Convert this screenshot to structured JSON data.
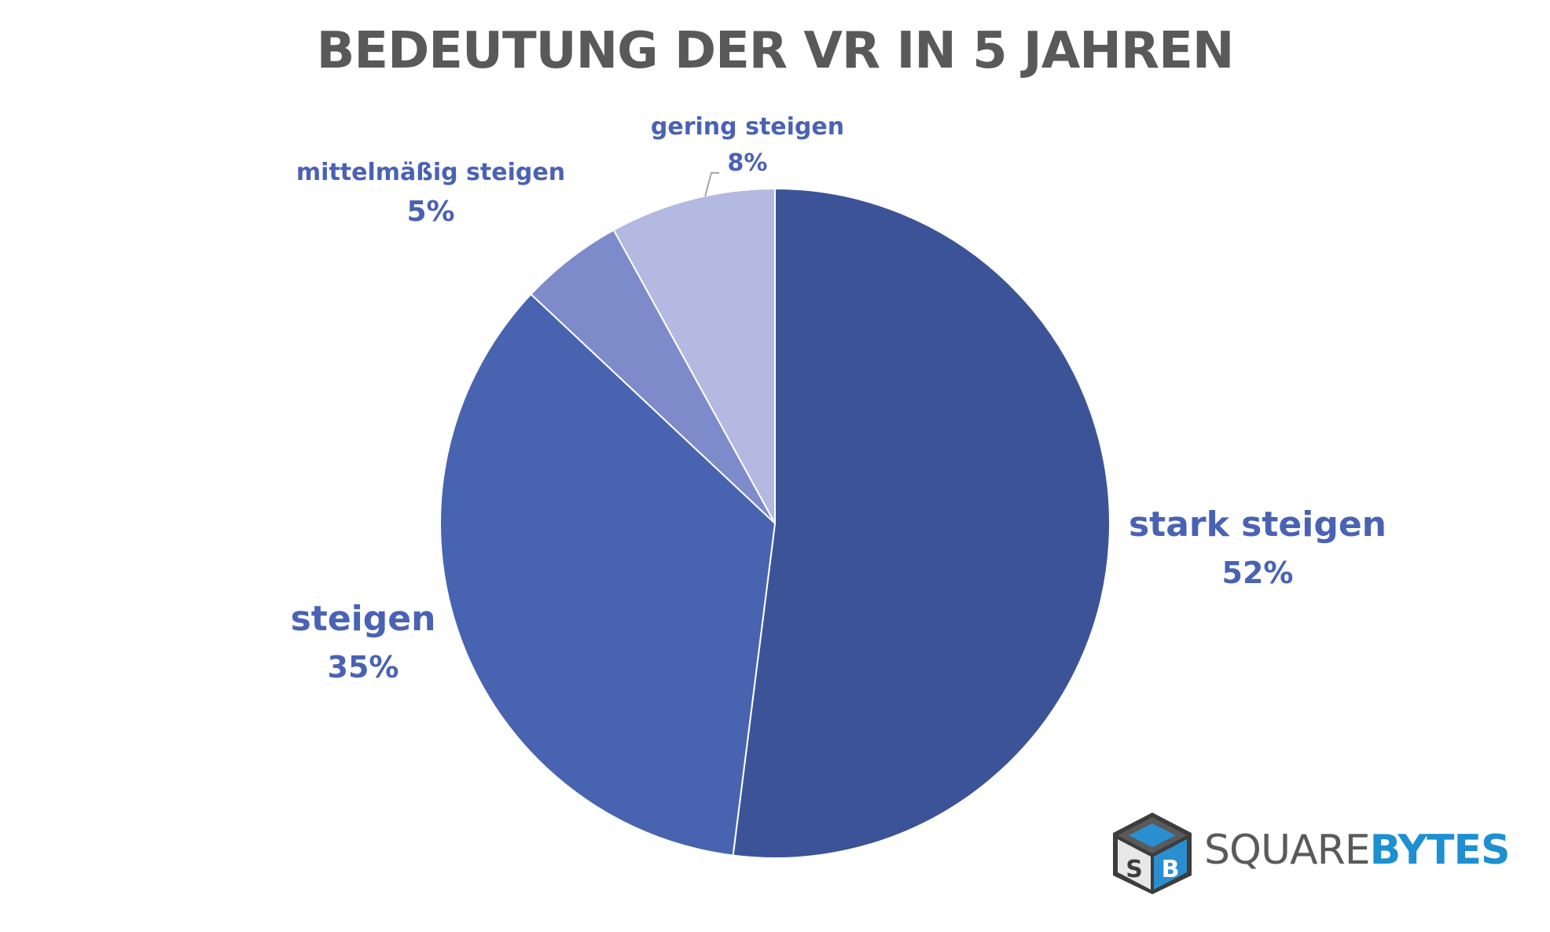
{
  "chart_data": {
    "type": "pie",
    "title": "BEDEUTUNG DER VR IN 5 JAHREN",
    "start_angle_deg": 0,
    "direction": "clockwise",
    "slices": [
      {
        "label": "stark steigen",
        "value": 52,
        "value_label": "52%",
        "color": "#3C5497"
      },
      {
        "label": "steigen",
        "value": 35,
        "value_label": "35%",
        "color": "#4864B0"
      },
      {
        "label": "mittelmäßig steigen",
        "value": 5,
        "value_label": "5%",
        "color": "#7D8BCB"
      },
      {
        "label": "gering steigen",
        "value": 8,
        "value_label": "8%",
        "color": "#B3B9E0"
      }
    ],
    "label_color": "#4A62B3"
  },
  "logo": {
    "monogram": "SB",
    "word1": "SQUARE",
    "word2": "BYTES"
  }
}
